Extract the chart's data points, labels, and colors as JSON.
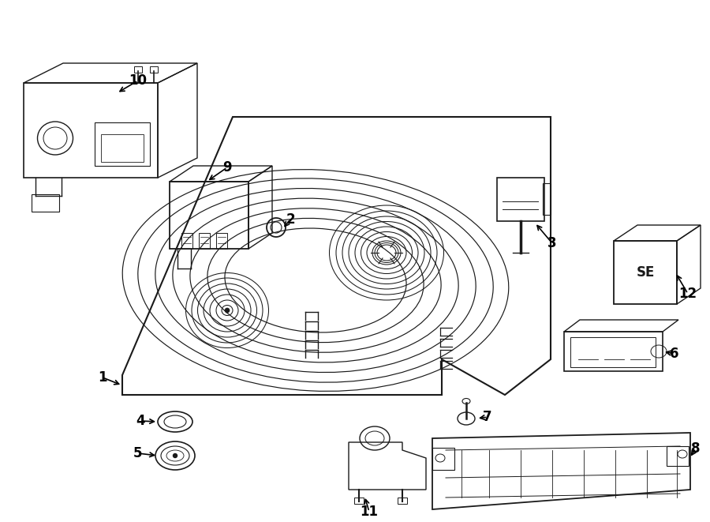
{
  "bg_color": "#ffffff",
  "line_color": "#1a1a1a",
  "lw": 1.0,
  "figsize": [
    9.0,
    6.61
  ],
  "dpi": 100,
  "label_fontsize": 12
}
